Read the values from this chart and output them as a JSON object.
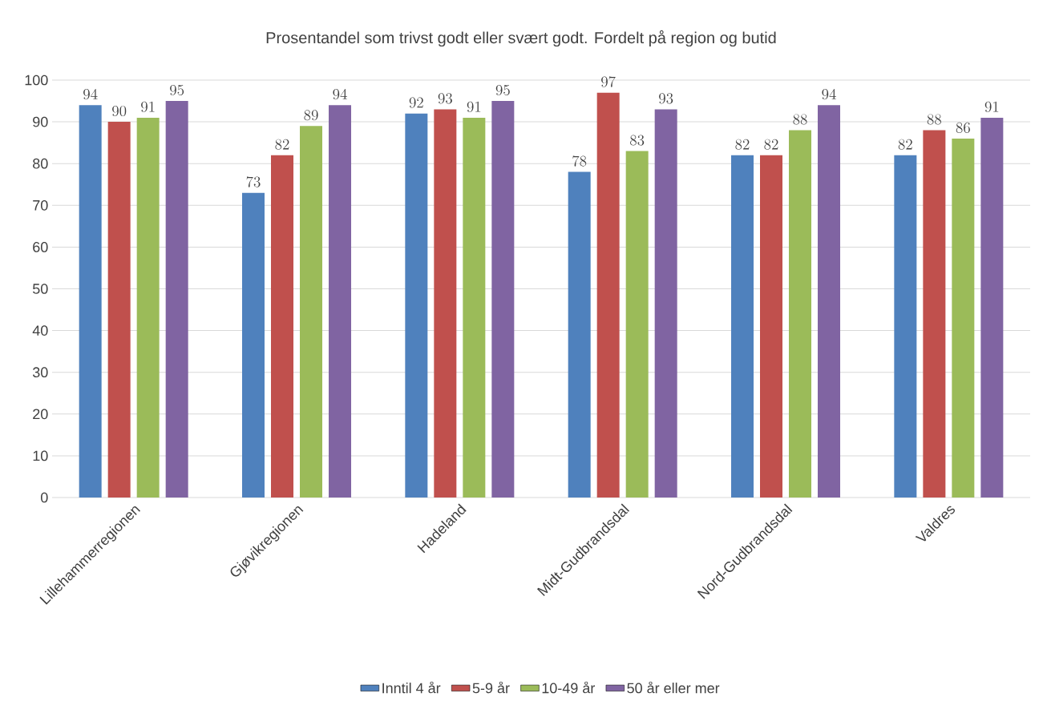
{
  "chart_data": {
    "type": "bar",
    "title": "Prosentandel som trivst godt eller svært godt. Fordelt på region og butid",
    "categories": [
      "Lillehammerregionen",
      "Gjøvikregionen",
      "Hadeland",
      "Midt-Gudbrandsdal",
      "Nord-Gudbrandsdal",
      "Valdres"
    ],
    "series": [
      {
        "name": "Inntil 4 år",
        "color": "#4f81bd",
        "values": [
          94,
          73,
          92,
          78,
          82,
          82
        ]
      },
      {
        "name": "5-9 år",
        "color": "#c0504d",
        "values": [
          90,
          82,
          93,
          97,
          82,
          88
        ]
      },
      {
        "name": "10-49 år",
        "color": "#9bbb59",
        "values": [
          91,
          89,
          91,
          83,
          88,
          86
        ]
      },
      {
        "name": "50 år eller mer",
        "color": "#8064a2",
        "values": [
          95,
          94,
          95,
          93,
          94,
          91
        ]
      }
    ],
    "ylim": [
      0,
      100
    ],
    "yticks": [
      0,
      10,
      20,
      30,
      40,
      50,
      60,
      70,
      80,
      90,
      100
    ],
    "grid": "y",
    "legend": "bottom",
    "data_labels": true
  }
}
